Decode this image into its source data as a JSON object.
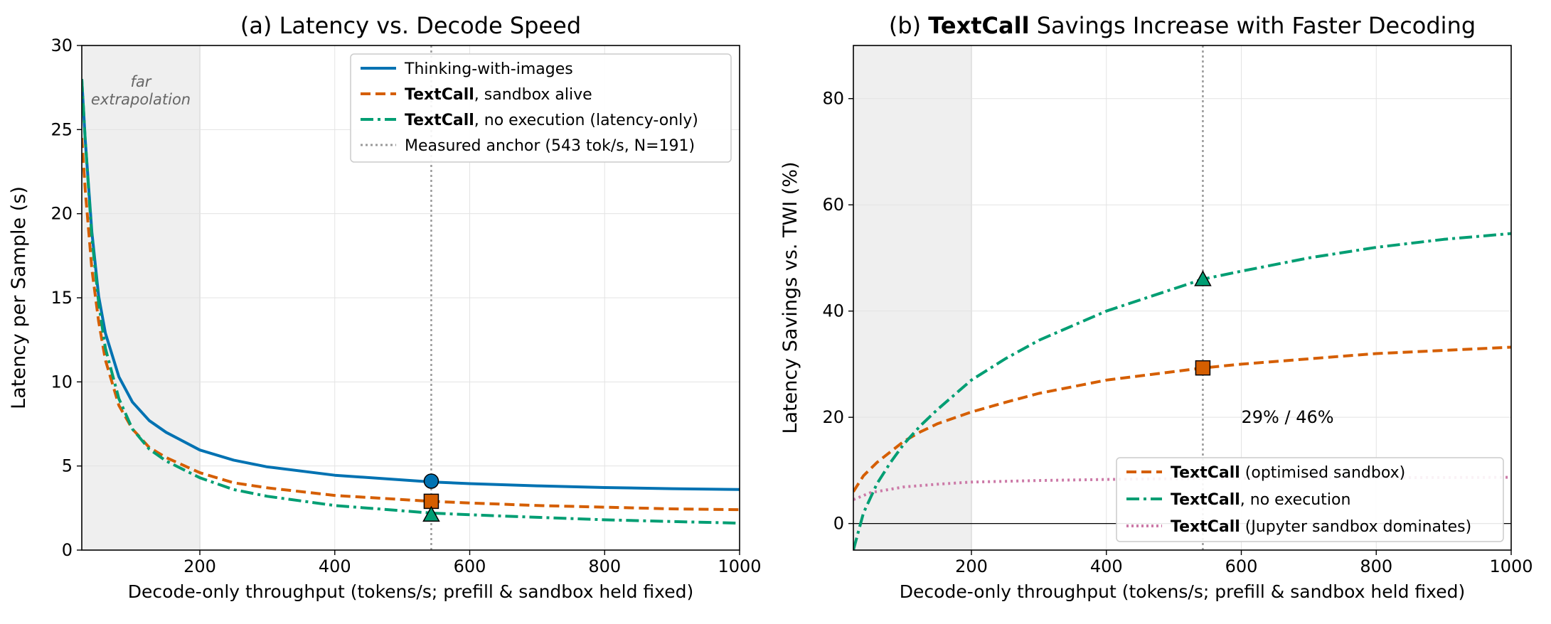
{
  "chart_data": [
    {
      "type": "line",
      "title": "(a) Latency vs. Decode Speed",
      "xlabel": "Decode-only throughput (tokens/s; prefill & sandbox held fixed)",
      "ylabel": "Latency per Sample (s)",
      "xlim": [
        25,
        1000
      ],
      "ylim": [
        0,
        30
      ],
      "xticks": [
        200,
        400,
        600,
        800,
        1000
      ],
      "yticks": [
        0,
        5,
        10,
        15,
        20,
        25,
        30
      ],
      "grid": true,
      "shaded_region": {
        "x": [
          25,
          200
        ],
        "label_line1": "far",
        "label_line2": "extrapolation"
      },
      "anchor_x": 543,
      "legend_position": "top-right",
      "legend": [
        {
          "label": "Thinking-with-images",
          "bold": ""
        },
        {
          "label": ", sandbox alive",
          "bold": "TextCall"
        },
        {
          "label": ", no execution (latency-only)",
          "bold": "TextCall"
        },
        {
          "label": "Measured anchor (543 tok/s, N=191)",
          "bold": ""
        }
      ],
      "series": [
        {
          "color": "#0072b2",
          "dash": "solid",
          "marker": "circle",
          "x": [
            25,
            30,
            40,
            50,
            60,
            80,
            100,
            125,
            150,
            200,
            250,
            300,
            400,
            543,
            600,
            700,
            800,
            900,
            1000
          ],
          "y": [
            28.0,
            24.5,
            18.9,
            15.1,
            12.9,
            10.3,
            8.8,
            7.7,
            7.0,
            5.95,
            5.35,
            4.95,
            4.45,
            4.05,
            3.95,
            3.82,
            3.72,
            3.65,
            3.6
          ],
          "marker_point": [
            543,
            4.1
          ]
        },
        {
          "color": "#d55e00",
          "dash": "dashed",
          "marker": "square",
          "x": [
            25,
            30,
            40,
            50,
            60,
            80,
            100,
            125,
            150,
            200,
            250,
            300,
            400,
            543,
            600,
            700,
            800,
            900,
            1000
          ],
          "y": [
            24.5,
            21.5,
            16.7,
            13.6,
            11.3,
            8.6,
            7.2,
            6.1,
            5.5,
            4.6,
            4.0,
            3.7,
            3.25,
            2.9,
            2.8,
            2.65,
            2.55,
            2.45,
            2.4
          ],
          "marker_point": [
            543,
            2.9
          ]
        },
        {
          "color": "#009e73",
          "dash": "dashdot",
          "marker": "triangle",
          "x": [
            25,
            30,
            40,
            50,
            60,
            80,
            100,
            125,
            150,
            200,
            250,
            300,
            400,
            543,
            600,
            700,
            800,
            900,
            1000
          ],
          "y": [
            28.0,
            24.5,
            18.6,
            14.7,
            12.0,
            9.0,
            7.2,
            6.0,
            5.3,
            4.3,
            3.6,
            3.2,
            2.65,
            2.2,
            2.1,
            1.95,
            1.8,
            1.7,
            1.6
          ],
          "marker_point": [
            543,
            2.1
          ]
        }
      ]
    },
    {
      "type": "line",
      "title_bold": "TextCall",
      "title_prefix": "(b) ",
      "title_suffix": " Savings Increase with Faster Decoding",
      "xlabel": "Decode-only throughput (tokens/s; prefill & sandbox held fixed)",
      "ylabel": "Latency Savings vs. TWI (%)",
      "xlim": [
        25,
        1000
      ],
      "ylim": [
        -5,
        90
      ],
      "xticks": [
        200,
        400,
        600,
        800,
        1000
      ],
      "yticks": [
        0,
        20,
        40,
        60,
        80
      ],
      "grid": true,
      "shaded_region": {
        "x": [
          25,
          200
        ]
      },
      "anchor_x": 543,
      "zero_line": true,
      "annotation": {
        "text": "29% / 46%",
        "x": 600,
        "y": 20
      },
      "legend_position": "bottom-right",
      "legend": [
        {
          "bold": "TextCall",
          "label": " (optimised sandbox)"
        },
        {
          "bold": "TextCall",
          "label": ", no execution"
        },
        {
          "bold": "TextCall",
          "label": " (Jupyter sandbox dominates)"
        }
      ],
      "series": [
        {
          "color": "#d55e00",
          "dash": "dashed",
          "marker": "square",
          "x": [
            25,
            40,
            60,
            80,
            100,
            125,
            150,
            200,
            250,
            300,
            400,
            543,
            600,
            700,
            800,
            900,
            1000
          ],
          "y": [
            6.0,
            9.0,
            11.5,
            13.5,
            15.5,
            17.3,
            18.8,
            21.0,
            22.8,
            24.5,
            27.0,
            29.3,
            30.0,
            31.0,
            32.0,
            32.6,
            33.2
          ],
          "marker_point": [
            543,
            29.3
          ]
        },
        {
          "color": "#009e73",
          "dash": "dashdot",
          "marker": "triangle",
          "x": [
            25,
            40,
            60,
            80,
            100,
            125,
            150,
            200,
            250,
            300,
            400,
            543,
            600,
            700,
            800,
            900,
            1000
          ],
          "y": [
            -5,
            2.0,
            7.5,
            11.5,
            15.0,
            18.5,
            21.5,
            27.0,
            31.0,
            34.5,
            40.0,
            46.0,
            47.5,
            50.0,
            52.0,
            53.5,
            54.6
          ],
          "marker_point": [
            543,
            46.0
          ]
        },
        {
          "color": "#cc79a7",
          "dash": "dotted",
          "marker": "",
          "x": [
            25,
            50,
            100,
            150,
            200,
            300,
            400,
            543,
            700,
            1000
          ],
          "y": [
            4.5,
            5.8,
            6.9,
            7.4,
            7.8,
            8.1,
            8.3,
            8.5,
            8.6,
            8.7
          ]
        }
      ]
    }
  ]
}
